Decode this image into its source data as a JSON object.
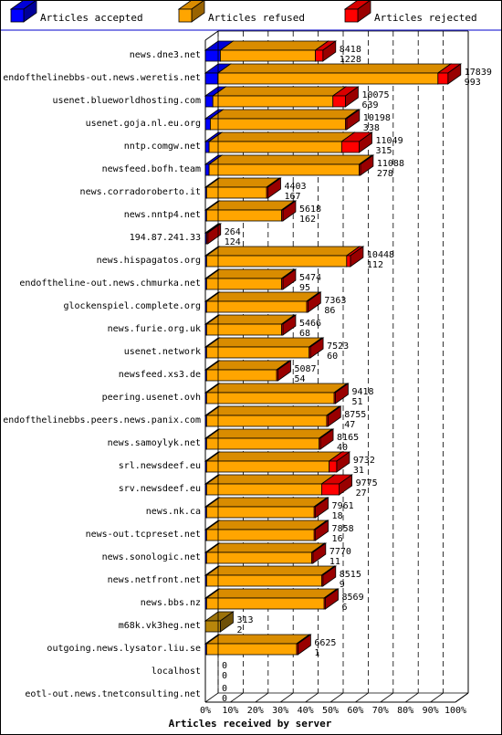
{
  "chart_data": {
    "type": "bar",
    "orientation": "horizontal",
    "stacked": true,
    "render_3d": true,
    "xlabel": "Articles received by server",
    "x_ticks": [
      "0%",
      "10%",
      "20%",
      "30%",
      "40%",
      "50%",
      "60%",
      "70%",
      "80%",
      "90%",
      "100%"
    ],
    "xlim": [
      0,
      100
    ],
    "grid": "vertical dashed",
    "legend_position": "top",
    "colors": {
      "accepted": "#0000ff",
      "refused": "#ffa500",
      "rejected": "#ff0000",
      "zero_total": "#b8860b",
      "grid": "#000000",
      "legend_border": "#000000"
    },
    "series": [
      {
        "name": "Articles accepted",
        "key": "accepted"
      },
      {
        "name": "Articles refused",
        "key": "refused"
      },
      {
        "name": "Articles rejected",
        "key": "rejected"
      }
    ],
    "rows": [
      {
        "label": "news.dne3.net",
        "total": "8418",
        "second": "1228",
        "accepted_pct": 6,
        "refused_pct": 38,
        "rejected_pct": 3
      },
      {
        "label": "endofthelinebbs-out.news.weretis.net",
        "total": "17839",
        "second": "993",
        "accepted_pct": 5,
        "refused_pct": 88,
        "rejected_pct": 4
      },
      {
        "label": "usenet.blueworldhosting.com",
        "total": "10075",
        "second": "639",
        "accepted_pct": 3,
        "refused_pct": 48,
        "rejected_pct": 5
      },
      {
        "label": "usenet.goja.nl.eu.org",
        "total": "10198",
        "second": "338",
        "accepted_pct": 2,
        "refused_pct": 54,
        "rejected_pct": 0.5
      },
      {
        "label": "nntp.comgw.net",
        "total": "11049",
        "second": "315",
        "accepted_pct": 1.5,
        "refused_pct": 53,
        "rejected_pct": 7
      },
      {
        "label": "newsfeed.bofh.team",
        "total": "11088",
        "second": "278",
        "accepted_pct": 1.5,
        "refused_pct": 60,
        "rejected_pct": 0.5
      },
      {
        "label": "news.corradoroberto.it",
        "total": "4403",
        "second": "167",
        "accepted_pct": 0.5,
        "refused_pct": 24,
        "rejected_pct": 0.5
      },
      {
        "label": "news.nntp4.net",
        "total": "5618",
        "second": "162",
        "accepted_pct": 0.5,
        "refused_pct": 30,
        "rejected_pct": 0.5
      },
      {
        "label": "194.87.241.33",
        "total": "264",
        "second": "124",
        "accepted_pct": 0.5,
        "refused_pct": 0,
        "rejected_pct": 0.5
      },
      {
        "label": "news.hispagatos.org",
        "total": "10448",
        "second": "112",
        "accepted_pct": 0.5,
        "refused_pct": 56,
        "rejected_pct": 1.5
      },
      {
        "label": "endoftheline-out.news.chmurka.net",
        "total": "5474",
        "second": "95",
        "accepted_pct": 0.5,
        "refused_pct": 30,
        "rejected_pct": 0.5
      },
      {
        "label": "glockenspiel.complete.org",
        "total": "7363",
        "second": "86",
        "accepted_pct": 0.5,
        "refused_pct": 40,
        "rejected_pct": 0.5
      },
      {
        "label": "news.furie.org.uk",
        "total": "5466",
        "second": "68",
        "accepted_pct": 0.5,
        "refused_pct": 30,
        "rejected_pct": 0.5
      },
      {
        "label": "usenet.network",
        "total": "7523",
        "second": "60",
        "accepted_pct": 0.5,
        "refused_pct": 41,
        "rejected_pct": 0.5
      },
      {
        "label": "newsfeed.xs3.de",
        "total": "5087",
        "second": "54",
        "accepted_pct": 0.5,
        "refused_pct": 28,
        "rejected_pct": 0.5
      },
      {
        "label": "peering.usenet.ovh",
        "total": "9418",
        "second": "51",
        "accepted_pct": 0.5,
        "refused_pct": 51,
        "rejected_pct": 0.5
      },
      {
        "label": "endofthelinebbs.peers.news.panix.com",
        "total": "8755",
        "second": "47",
        "accepted_pct": 0.5,
        "refused_pct": 48,
        "rejected_pct": 0.5
      },
      {
        "label": "news.samoylyk.net",
        "total": "8165",
        "second": "40",
        "accepted_pct": 0.5,
        "refused_pct": 45,
        "rejected_pct": 0.5
      },
      {
        "label": "srl.newsdeef.eu",
        "total": "9732",
        "second": "31",
        "accepted_pct": 0.5,
        "refused_pct": 49,
        "rejected_pct": 3
      },
      {
        "label": "srv.newsdeef.eu",
        "total": "9775",
        "second": "27",
        "accepted_pct": 0.5,
        "refused_pct": 46,
        "rejected_pct": 7
      },
      {
        "label": "news.nk.ca",
        "total": "7961",
        "second": "18",
        "accepted_pct": 0.5,
        "refused_pct": 43,
        "rejected_pct": 0.5
      },
      {
        "label": "news-out.tcpreset.net",
        "total": "7858",
        "second": "16",
        "accepted_pct": 0.5,
        "refused_pct": 43,
        "rejected_pct": 0.5
      },
      {
        "label": "news.sonologic.net",
        "total": "7770",
        "second": "11",
        "accepted_pct": 0.5,
        "refused_pct": 42,
        "rejected_pct": 0.5
      },
      {
        "label": "news.netfront.net",
        "total": "8515",
        "second": "9",
        "accepted_pct": 0.5,
        "refused_pct": 46,
        "rejected_pct": 0.5
      },
      {
        "label": "news.bbs.nz",
        "total": "8569",
        "second": "6",
        "accepted_pct": 0.5,
        "refused_pct": 47,
        "rejected_pct": 0.5
      },
      {
        "label": "m68k.vk3heg.net",
        "total": "313",
        "second": "2",
        "accepted_pct": 0,
        "refused_pct": 0,
        "rejected_pct": 0,
        "zero_total_pct": 6
      },
      {
        "label": "outgoing.news.lysator.liu.se",
        "total": "6625",
        "second": "1",
        "accepted_pct": 0.5,
        "refused_pct": 36,
        "rejected_pct": 0.5
      },
      {
        "label": "localhost",
        "total": "0",
        "second": "0",
        "accepted_pct": 0,
        "refused_pct": 0,
        "rejected_pct": 0
      },
      {
        "label": "eotl-out.news.tnetconsulting.net",
        "total": "0",
        "second": "0",
        "accepted_pct": 0,
        "refused_pct": 0,
        "rejected_pct": 0
      }
    ]
  }
}
